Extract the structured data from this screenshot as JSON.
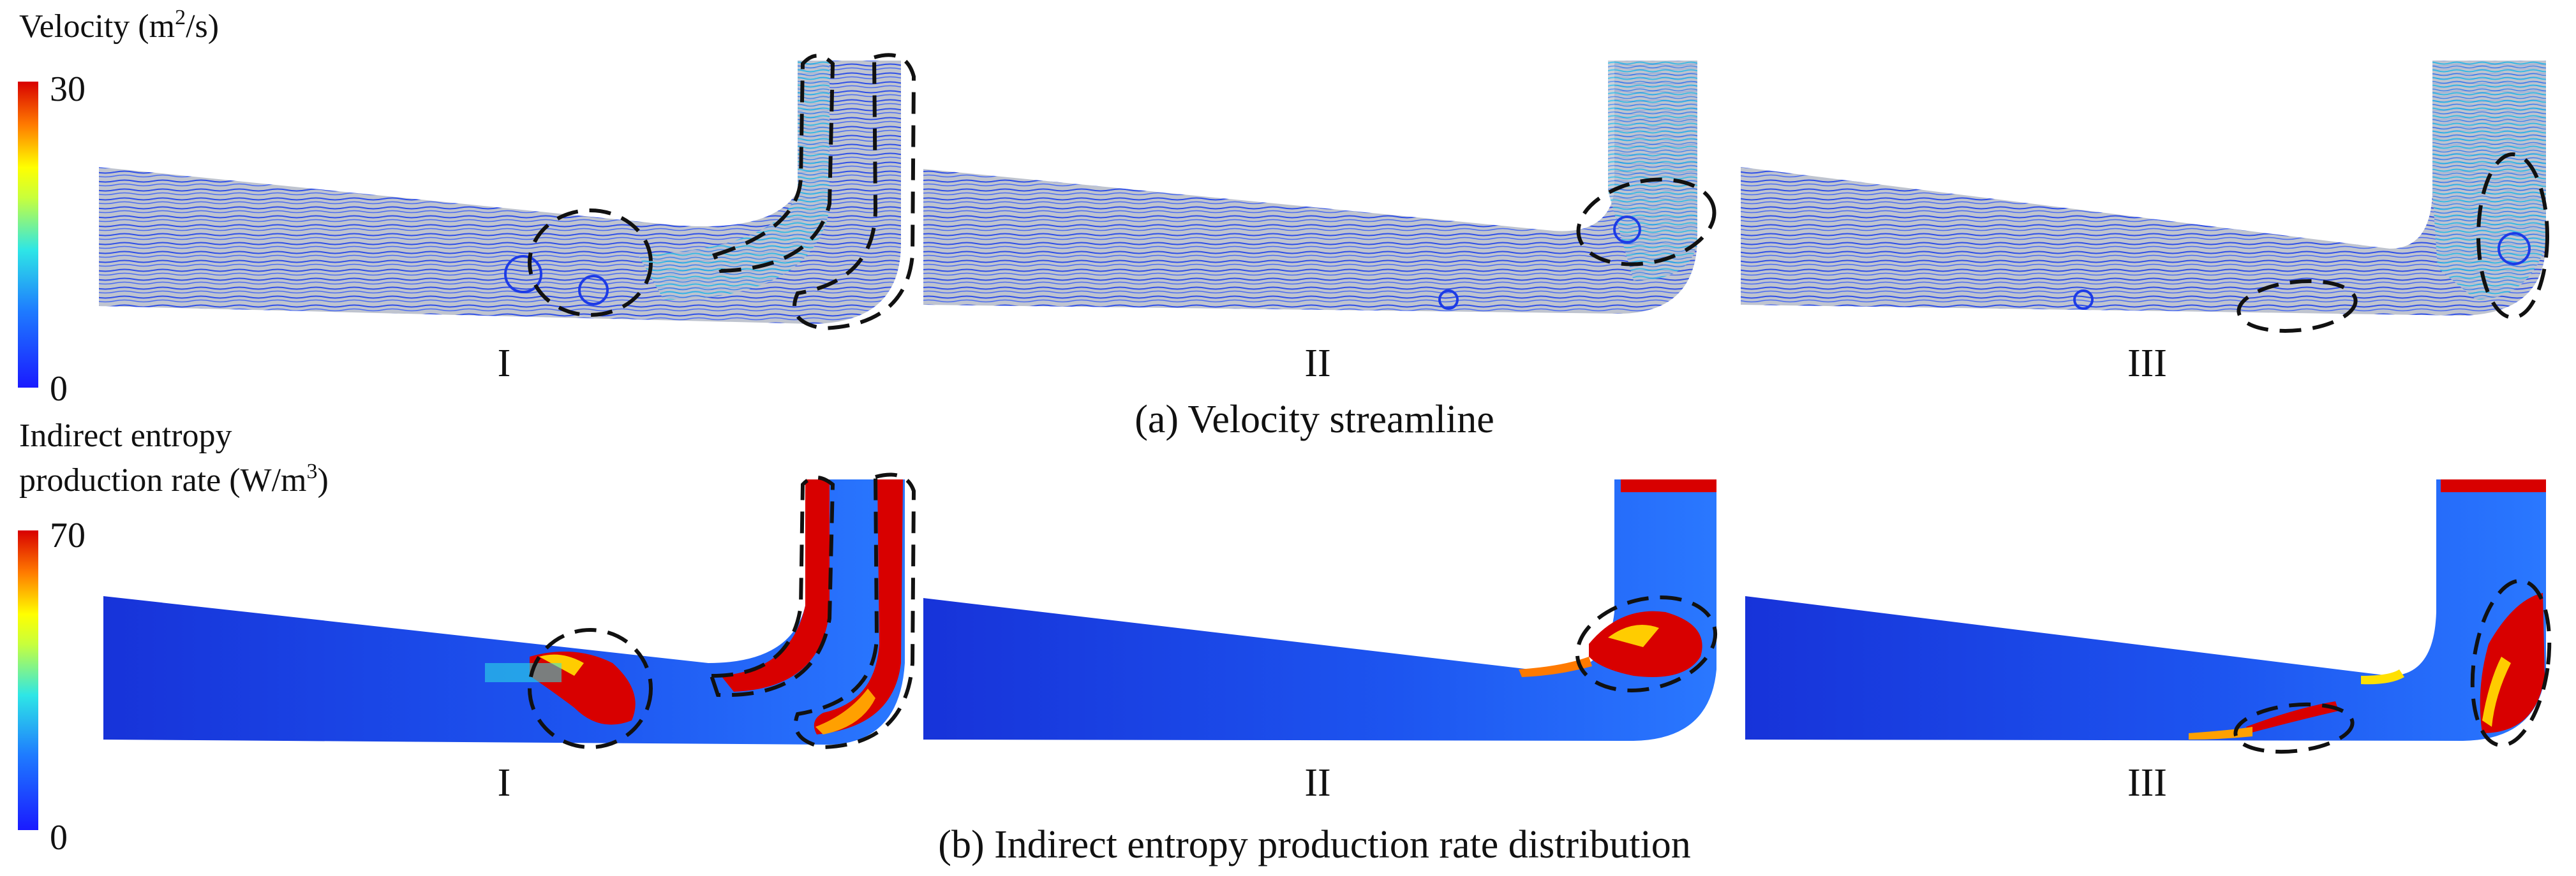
{
  "colorbars": {
    "velocity": {
      "title": "Velocity (m",
      "title_sup": "2",
      "title_tail": "/s)",
      "max": "30",
      "min": "0"
    },
    "entropy": {
      "title_line1": "Indirect entropy",
      "title_line2": "production rate (W/m",
      "title_sup": "3",
      "title_tail": ")",
      "max": "70",
      "min": "0"
    }
  },
  "rows": {
    "velocity": {
      "caption": "(a) Velocity streamline",
      "labels": [
        "I",
        "II",
        "III"
      ]
    },
    "entropy": {
      "caption": "(b) Indirect entropy production rate distribution",
      "labels": [
        "I",
        "II",
        "III"
      ]
    }
  },
  "colors": {
    "jet_low": "#1a1aff",
    "jet_lowmid": "#1e7bff",
    "jet_mid": "#2ee6e6",
    "jet_midhigh": "#ffff00",
    "jet_high": "#ff7a00",
    "jet_top": "#d80000",
    "streamline_bg": "#bdbdbd"
  }
}
